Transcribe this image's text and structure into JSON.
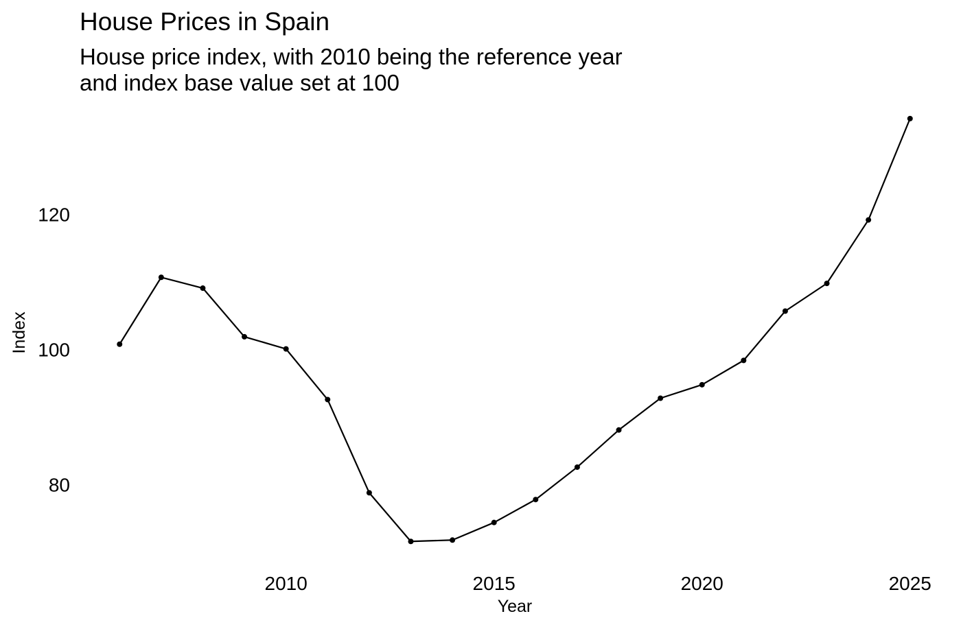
{
  "chart_data": {
    "type": "line",
    "title": "House Prices in Spain",
    "subtitle": [
      "House price index, with 2010 being the reference year",
      "and index base value set at 100"
    ],
    "xlabel": "Year",
    "ylabel": "Index",
    "xlim": [
      2005.6,
      2025.4
    ],
    "ylim": [
      70,
      135
    ],
    "x_ticks": [
      2010,
      2015,
      2020,
      2025
    ],
    "y_ticks": [
      80,
      100,
      120
    ],
    "grid": false,
    "legend": "none",
    "series": [
      {
        "color": "#000000",
        "x": [
          2006,
          2007,
          2008,
          2009,
          2010,
          2011,
          2012,
          2013,
          2014,
          2015,
          2016,
          2017,
          2018,
          2019,
          2020,
          2021,
          2022,
          2023,
          2024,
          2025
        ],
        "y": [
          100.8,
          110.7,
          109.1,
          101.9,
          100.1,
          92.6,
          78.8,
          71.6,
          71.8,
          74.4,
          77.8,
          82.6,
          88.1,
          92.8,
          94.8,
          98.4,
          105.7,
          109.8,
          119.2,
          134.2
        ]
      }
    ]
  }
}
